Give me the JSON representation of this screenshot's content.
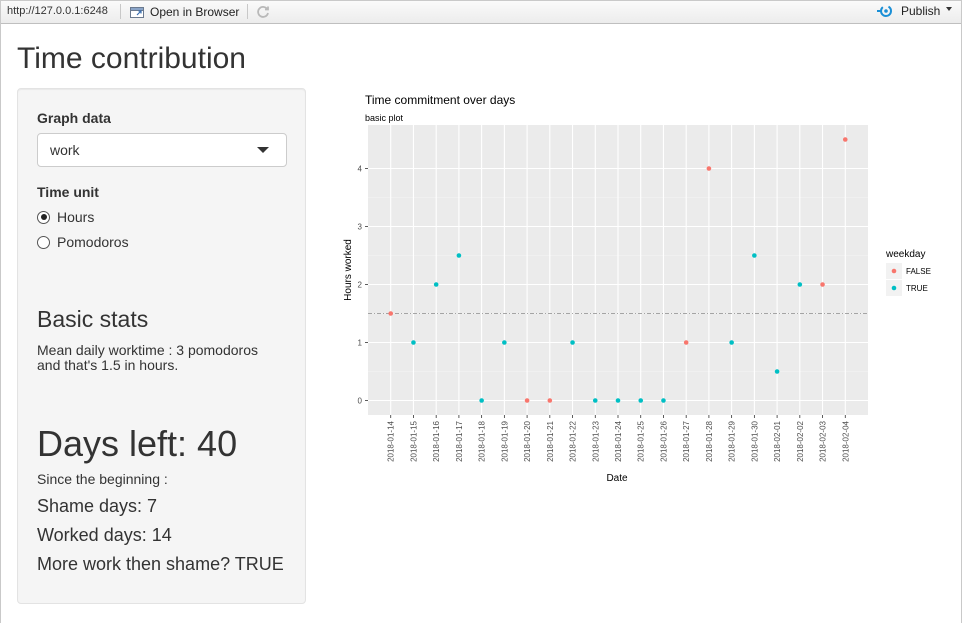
{
  "toolbar": {
    "url": "http://127.0.0.1:6248",
    "open_browser": "Open in Browser",
    "publish": "Publish"
  },
  "app": {
    "title": "Time contribution"
  },
  "sidebar": {
    "graph_data_label": "Graph data",
    "graph_data_value": "work",
    "time_unit_label": "Time unit",
    "time_unit_options": [
      "Hours",
      "Pomodoros"
    ],
    "time_unit_selected": "Hours",
    "basic_stats_title": "Basic stats",
    "mean_line1": "Mean daily worktime : 3 pomodoros",
    "mean_line2": "and that's 1.5 in hours.",
    "days_left": "Days left: 40",
    "since_beginning": "Since the beginning :",
    "shame_days": "Shame days: 7",
    "worked_days": "Worked days: 14",
    "more_work": "More work then shame? TRUE"
  },
  "colors": {
    "false_series": "#F8766D",
    "true_series": "#00BFC4",
    "panel_bg": "#EBEBEB",
    "grid": "#FFFFFF"
  },
  "chart_data": {
    "type": "scatter",
    "title": "Time commitment over days",
    "subtitle": "basic plot",
    "xlabel": "Date",
    "ylabel": "Hours worked",
    "ylim": [
      -0.25,
      4.75
    ],
    "yticks": [
      0,
      1,
      2,
      3,
      4
    ],
    "hline": 1.5,
    "grid": true,
    "legend_title": "weekday",
    "legend_placement": "right",
    "categories": [
      "2018-01-14",
      "2018-01-15",
      "2018-01-16",
      "2018-01-17",
      "2018-01-18",
      "2018-01-19",
      "2018-01-20",
      "2018-01-21",
      "2018-01-22",
      "2018-01-23",
      "2018-01-24",
      "2018-01-25",
      "2018-01-26",
      "2018-01-27",
      "2018-01-28",
      "2018-01-29",
      "2018-01-30",
      "2018-02-01",
      "2018-02-02",
      "2018-02-03",
      "2018-02-04"
    ],
    "series": [
      {
        "name": "FALSE",
        "points": [
          {
            "x": "2018-01-14",
            "y": 1.5
          },
          {
            "x": "2018-01-20",
            "y": 0
          },
          {
            "x": "2018-01-21",
            "y": 0
          },
          {
            "x": "2018-01-27",
            "y": 1
          },
          {
            "x": "2018-01-28",
            "y": 4
          },
          {
            "x": "2018-02-03",
            "y": 2
          },
          {
            "x": "2018-02-04",
            "y": 4.5
          }
        ]
      },
      {
        "name": "TRUE",
        "points": [
          {
            "x": "2018-01-15",
            "y": 1
          },
          {
            "x": "2018-01-16",
            "y": 2
          },
          {
            "x": "2018-01-17",
            "y": 2.5
          },
          {
            "x": "2018-01-18",
            "y": 0
          },
          {
            "x": "2018-01-19",
            "y": 1
          },
          {
            "x": "2018-01-22",
            "y": 1
          },
          {
            "x": "2018-01-23",
            "y": 0
          },
          {
            "x": "2018-01-24",
            "y": 0
          },
          {
            "x": "2018-01-25",
            "y": 0
          },
          {
            "x": "2018-01-26",
            "y": 0
          },
          {
            "x": "2018-01-29",
            "y": 1
          },
          {
            "x": "2018-01-30",
            "y": 2.5
          },
          {
            "x": "2018-02-01",
            "y": 0.5
          },
          {
            "x": "2018-02-02",
            "y": 2
          }
        ]
      }
    ]
  }
}
